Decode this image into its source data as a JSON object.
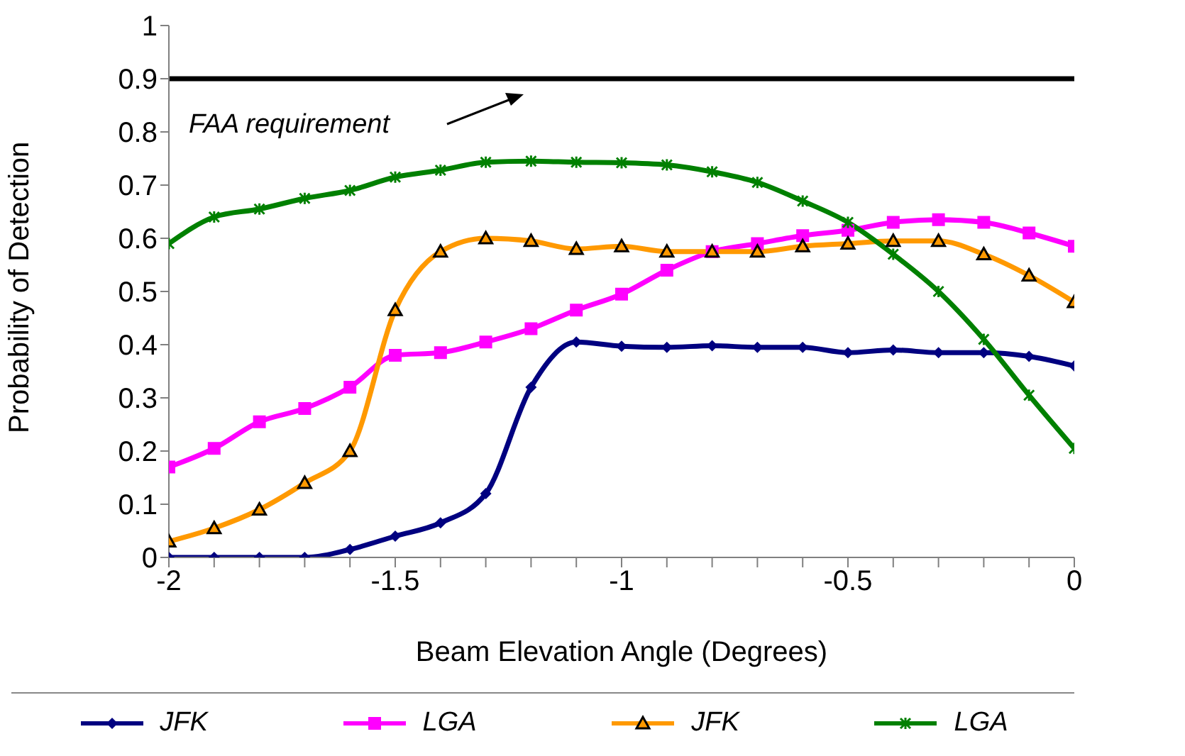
{
  "chart_data": {
    "type": "line",
    "xlabel": "Beam Elevation Angle (Degrees)",
    "ylabel": "Probability of Detection",
    "x": [
      -2,
      -1.9,
      -1.8,
      -1.7,
      -1.6,
      -1.5,
      -1.4,
      -1.3,
      -1.2,
      -1.1,
      -1,
      -0.9,
      -0.8,
      -0.7,
      -0.6,
      -0.5,
      -0.4,
      -0.3,
      -0.2,
      -0.1,
      0
    ],
    "series": [
      {
        "name": "JFK",
        "color": "#000080",
        "marker": "diamond",
        "values": [
          0,
          0,
          0,
          0,
          0.015,
          0.04,
          0.065,
          0.12,
          0.32,
          0.405,
          0.397,
          0.395,
          0.398,
          0.395,
          0.395,
          0.385,
          0.39,
          0.385,
          0.385,
          0.378,
          0.36
        ]
      },
      {
        "name": "LGA",
        "color": "#ff00ff",
        "marker": "square",
        "values": [
          0.17,
          0.205,
          0.255,
          0.28,
          0.32,
          0.38,
          0.385,
          0.405,
          0.43,
          0.465,
          0.495,
          0.54,
          0.575,
          0.59,
          0.605,
          0.615,
          0.63,
          0.635,
          0.63,
          0.61,
          0.585
        ]
      },
      {
        "name": "JFK",
        "color": "#ff9900",
        "marker": "triangle",
        "values": [
          0.03,
          0.055,
          0.09,
          0.14,
          0.2,
          0.465,
          0.575,
          0.6,
          0.595,
          0.58,
          0.585,
          0.575,
          0.575,
          0.575,
          0.585,
          0.59,
          0.595,
          0.595,
          0.57,
          0.53,
          0.48
        ]
      },
      {
        "name": "LGA",
        "color": "#008000",
        "marker": "cross",
        "values": [
          0.59,
          0.64,
          0.655,
          0.675,
          0.69,
          0.715,
          0.728,
          0.743,
          0.745,
          0.743,
          0.742,
          0.738,
          0.725,
          0.705,
          0.67,
          0.63,
          0.57,
          0.5,
          0.41,
          0.305,
          0.205
        ]
      }
    ],
    "xlim": [
      -2,
      0
    ],
    "xticks": [
      -2,
      {
        "value": -1.9,
        "label": null
      },
      {
        "value": -1.8,
        "label": null
      },
      {
        "value": -1.7,
        "label": null
      },
      {
        "value": -1.6,
        "label": null
      },
      -1.5,
      {
        "value": -1.4,
        "label": null
      },
      {
        "value": -1.3,
        "label": null
      },
      {
        "value": -1.2,
        "label": null
      },
      {
        "value": -1.1,
        "label": null
      },
      -1,
      {
        "value": -0.9,
        "label": null
      },
      {
        "value": -0.8,
        "label": null
      },
      {
        "value": -0.7,
        "label": null
      },
      {
        "value": -0.6,
        "label": null
      },
      -0.5,
      {
        "value": -0.4,
        "label": null
      },
      {
        "value": -0.3,
        "label": null
      },
      {
        "value": -0.2,
        "label": null
      },
      {
        "value": -0.1,
        "label": null
      },
      0
    ],
    "ylim": [
      0,
      1
    ],
    "yticks": [
      0,
      0.1,
      0.2,
      0.3,
      0.4,
      0.5,
      0.6,
      0.7,
      0.8,
      0.9,
      1
    ],
    "ref_lines": [
      {
        "axis": "y",
        "value": 0.9,
        "label": "FAA requirement",
        "color": "#000000"
      }
    ],
    "grid": false,
    "legend": "bottom",
    "line_style": "solid"
  }
}
